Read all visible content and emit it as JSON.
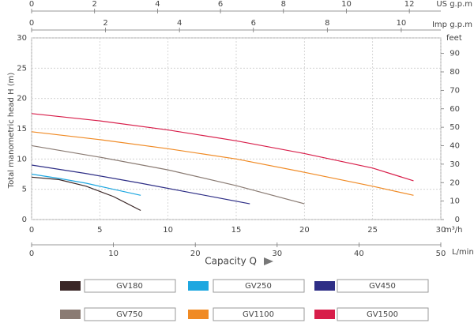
{
  "chart_data": {
    "type": "line",
    "ylabel": "Total manometric head  H  (m)",
    "xlabel": "Capacity  Q",
    "xunit": "m³/h",
    "xlim": [
      0,
      30
    ],
    "xticks": [
      0,
      5,
      10,
      15,
      20,
      25,
      30
    ],
    "ylim": [
      0,
      30
    ],
    "yticks": [
      0,
      5,
      10,
      15,
      20,
      25,
      30
    ],
    "grid": true,
    "top_axes": [
      {
        "label": "US g.p.m",
        "lim": [
          0,
          13
        ],
        "ticks": [
          0,
          2,
          4,
          6,
          8,
          10,
          12
        ]
      },
      {
        "label": "Imp g.p.m",
        "lim": [
          0,
          11.07
        ],
        "ticks": [
          0,
          2,
          4,
          6,
          8,
          10
        ]
      }
    ],
    "bottom_axis2": {
      "label": "L/min",
      "lim": [
        0,
        50
      ],
      "ticks": [
        0,
        10,
        20,
        30,
        40,
        50
      ]
    },
    "right_axis": {
      "label": "feet",
      "lim": [
        0,
        98.4
      ],
      "ticks": [
        0,
        10,
        20,
        30,
        40,
        50,
        60,
        70,
        80,
        90
      ]
    },
    "series": [
      {
        "name": "GV180",
        "color": "#3a2626",
        "x": [
          0,
          2,
          4,
          6,
          8
        ],
        "values": [
          7.0,
          6.6,
          5.5,
          3.8,
          1.5
        ]
      },
      {
        "name": "GV250",
        "color": "#1ea7e0",
        "x": [
          0,
          2,
          4,
          6,
          8
        ],
        "values": [
          7.5,
          6.8,
          6.0,
          5.0,
          4.0
        ]
      },
      {
        "name": "GV450",
        "color": "#2e2e86",
        "x": [
          0,
          4,
          8,
          12,
          16
        ],
        "values": [
          9.0,
          7.6,
          6.0,
          4.3,
          2.6
        ]
      },
      {
        "name": "GV750",
        "color": "#8a7b73",
        "x": [
          0,
          5,
          10,
          15,
          20
        ],
        "values": [
          12.2,
          10.3,
          8.2,
          5.6,
          2.6
        ]
      },
      {
        "name": "GV1100",
        "color": "#f08a24",
        "x": [
          0,
          5,
          10,
          15,
          20,
          25,
          28
        ],
        "values": [
          14.5,
          13.2,
          11.7,
          10.0,
          7.8,
          5.5,
          4.0
        ]
      },
      {
        "name": "GV1500",
        "color": "#d81e4a",
        "x": [
          0,
          5,
          10,
          15,
          20,
          25,
          28
        ],
        "values": [
          17.5,
          16.3,
          14.8,
          13.0,
          10.9,
          8.5,
          6.4
        ]
      }
    ]
  }
}
